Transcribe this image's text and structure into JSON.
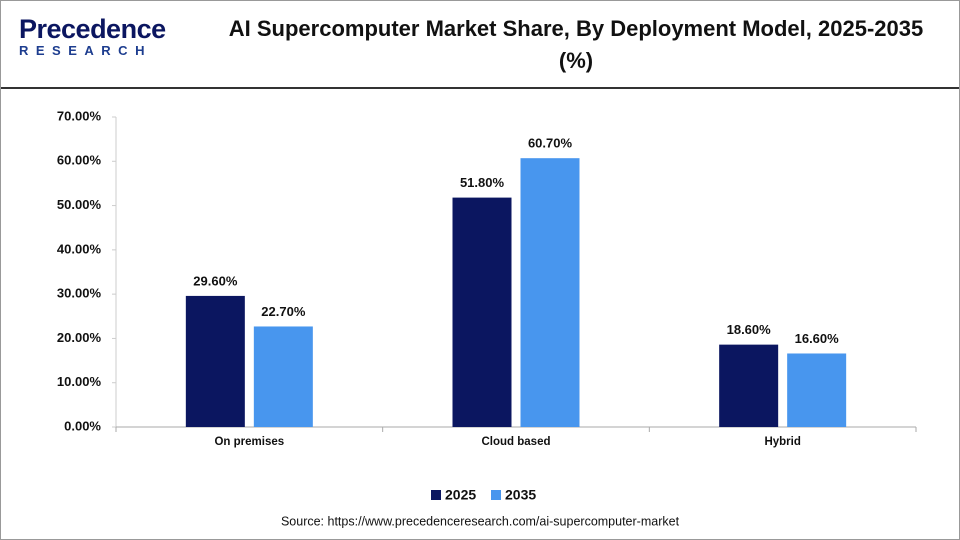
{
  "logo": {
    "name": "Precedence",
    "tagline": "RESEARCH"
  },
  "chart_data": {
    "type": "bar",
    "title": "AI Supercomputer  Market Share, By Deployment Model, 2025-2035 (%)",
    "categories": [
      "On premises",
      "Cloud based",
      "Hybrid"
    ],
    "series": [
      {
        "name": "2025",
        "color": "#0b1660",
        "values": [
          29.6,
          51.8,
          18.6
        ],
        "value_labels": [
          "29.60%",
          "51.80%",
          "18.60%"
        ]
      },
      {
        "name": "2035",
        "color": "#4896ee",
        "values": [
          22.7,
          60.7,
          16.6
        ],
        "value_labels": [
          "22.70%",
          "60.70%",
          "16.60%"
        ]
      }
    ],
    "ylim": [
      0,
      70
    ],
    "yticks": [
      {
        "value": 0,
        "label": "0.00%"
      },
      {
        "value": 10,
        "label": "10.00%"
      },
      {
        "value": 20,
        "label": "20.00%"
      },
      {
        "value": 30,
        "label": "30.00%"
      },
      {
        "value": 40,
        "label": "40.00%"
      },
      {
        "value": 50,
        "label": "50.00%"
      },
      {
        "value": 60,
        "label": "60.00%"
      },
      {
        "value": 70,
        "label": "70.00%"
      }
    ],
    "grid": false,
    "legend": "bottom",
    "source": "Source: https://www.precedenceresearch.com/ai-supercomputer-market"
  }
}
